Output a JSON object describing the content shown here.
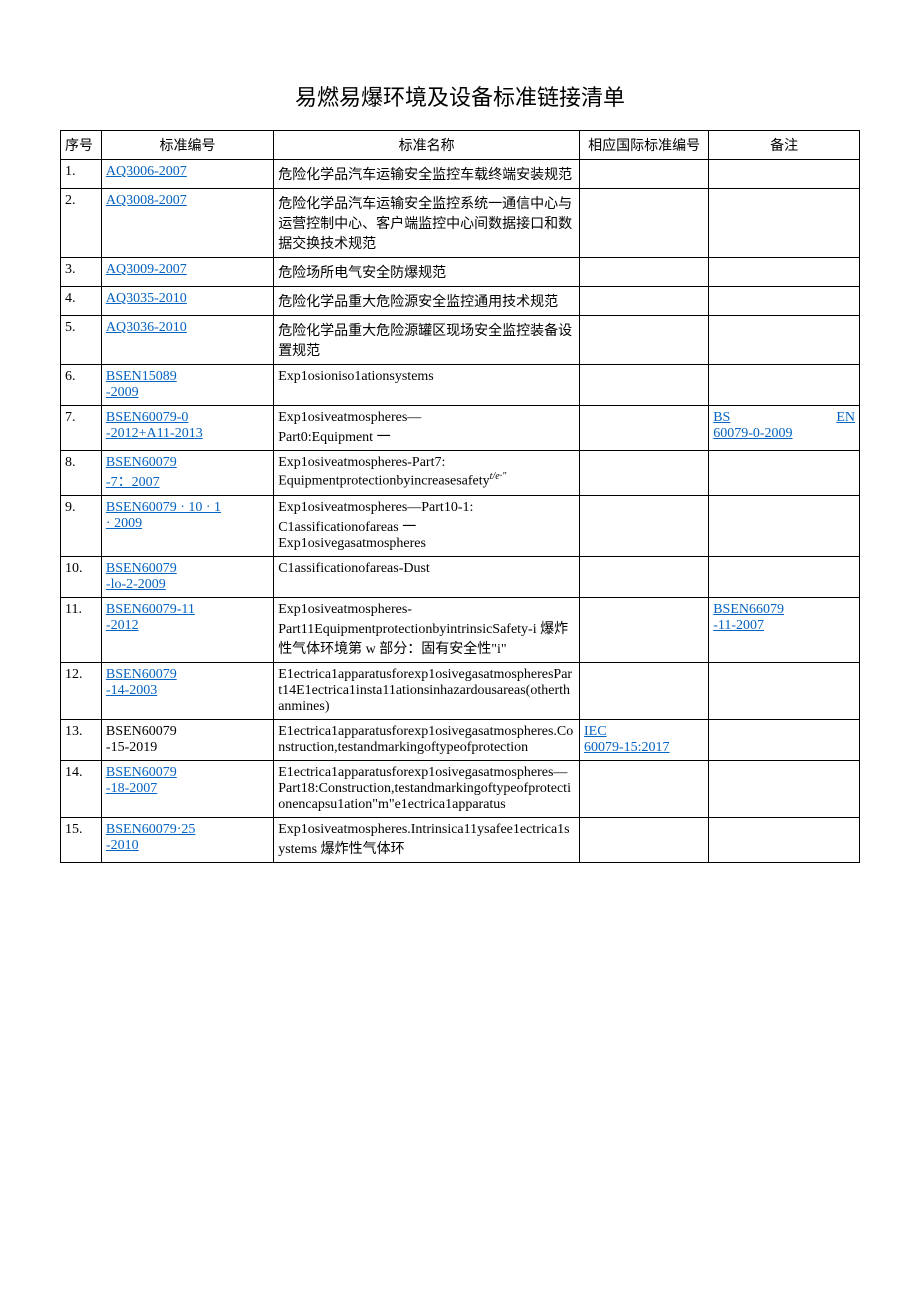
{
  "title": "易燃易爆环境及设备标准链接清单",
  "columns": {
    "seq": "序号",
    "code": "标准编号",
    "name": "标准名称",
    "intl": "相应国际标准编号",
    "note": "备注"
  },
  "rows": [
    {
      "seq": "1.",
      "code": "AQ3006-2007",
      "code_link": true,
      "name": "危险化学品汽车运输安全监控车载终端安装规范",
      "intl": "",
      "intl_link": false,
      "note": "",
      "note_link": false
    },
    {
      "seq": "2.",
      "code": "AQ3008-2007",
      "code_link": true,
      "name": "危险化学品汽车运输安全监控系统一通信中心与运营控制中心、客户端监控中心间数据接口和数据交换技术规范",
      "intl": "",
      "intl_link": false,
      "note": "",
      "note_link": false
    },
    {
      "seq": "3.",
      "code": "AQ3009-2007",
      "code_link": true,
      "name": "危险场所电气安全防爆规范",
      "intl": "",
      "intl_link": false,
      "note": "",
      "note_link": false
    },
    {
      "seq": "4.",
      "code": "AQ3035-2010",
      "code_link": true,
      "name": "危险化学品重大危险源安全监控通用技术规范",
      "intl": "",
      "intl_link": false,
      "note": "",
      "note_link": false
    },
    {
      "seq": "5.",
      "code": "AQ3036-2010",
      "code_link": true,
      "name": "危险化学品重大危险源罐区现场安全监控装备设置规范",
      "intl": "",
      "intl_link": false,
      "note": "",
      "note_link": false
    },
    {
      "seq": "6.",
      "code": "BSEN15089\n-2009",
      "code_link": true,
      "name": "Exp1osioniso1ationsystems",
      "intl": "",
      "intl_link": false,
      "note": "",
      "note_link": false
    },
    {
      "seq": "7.",
      "code": "BSEN60079-0\n-2012+A11-2013",
      "code_link": true,
      "name": "Exp1osiveatmospheres—\nPart0:Equipment 一",
      "intl": "",
      "intl_link": false,
      "note_split": {
        "left": "BS",
        "right": "EN",
        "second": "60079-0-2009"
      },
      "note_link": true
    },
    {
      "seq": "8.",
      "code": "BSEN60079\n-7：2007",
      "code_link": true,
      "name": "Exp1osiveatmospheres-Part7:\nEquipmentprotectionbyincreasesafety",
      "name_suffix_italic": "t/e·\"",
      "intl": "",
      "intl_link": false,
      "note": "",
      "note_link": false
    },
    {
      "seq": "9.",
      "code": "BSEN60079 · 10 · 1\n· 2009",
      "code_link": true,
      "name": "Exp1osiveatmospheres—Part10-1:\nC1assificationofareas 一\nExp1osivegasatmospheres",
      "intl": "",
      "intl_link": false,
      "note": "",
      "note_link": false
    },
    {
      "seq": "10.",
      "code": "BSEN60079\n-lo-2-2009",
      "code_link": true,
      "name": "C1assificationofareas-Dust",
      "intl": "",
      "intl_link": false,
      "note": "",
      "note_link": false
    },
    {
      "seq": "11.",
      "code": "BSEN60079-11\n-2012",
      "code_link": true,
      "name": "Exp1osiveatmospheres-\nPart11EquipmentprotectionbyintrinsicSafety-i 爆炸性气体环境第 w 部分：固有安全性\"i\"",
      "intl": "",
      "intl_link": false,
      "note": "BSEN66079\n-11-2007",
      "note_link": true
    },
    {
      "seq": "12.",
      "code": "BSEN60079\n-14-2003",
      "code_link": true,
      "name": "E1ectrica1apparatusforexp1osivegasatmospheresPart14E1ectrica1insta11ationsinhazardousareas(otherthanmines)",
      "intl": "",
      "intl_link": false,
      "note": "",
      "note_link": false
    },
    {
      "seq": "13.",
      "code": "BSEN60079\n-15-2019",
      "code_link": false,
      "name": "E1ectrica1apparatusforexp1osivegasatmospheres.Construction,testandmarkingoftypeofprotection",
      "intl": "IEC\n60079-15:2017",
      "intl_link": true,
      "note": "",
      "note_link": false
    },
    {
      "seq": "14.",
      "code": "BSEN60079\n-18-2007",
      "code_link": true,
      "name": "E1ectrica1apparatusforexp1osivegasatmospheres—\nPart18:Construction,testandmarkingoftypeofprotectionencapsu1ation\"m\"e1ectrica1apparatus",
      "intl": "",
      "intl_link": false,
      "note": "",
      "note_link": false
    },
    {
      "seq": "15.",
      "code": "BSEN60079·25\n-2010",
      "code_link": true,
      "name": "Exp1osiveatmospheres.Intrinsica11ysafee1ectrica1systems 爆炸性气体环",
      "intl": "",
      "intl_link": false,
      "note": "",
      "note_link": false
    }
  ],
  "link_color": "#0563c1"
}
